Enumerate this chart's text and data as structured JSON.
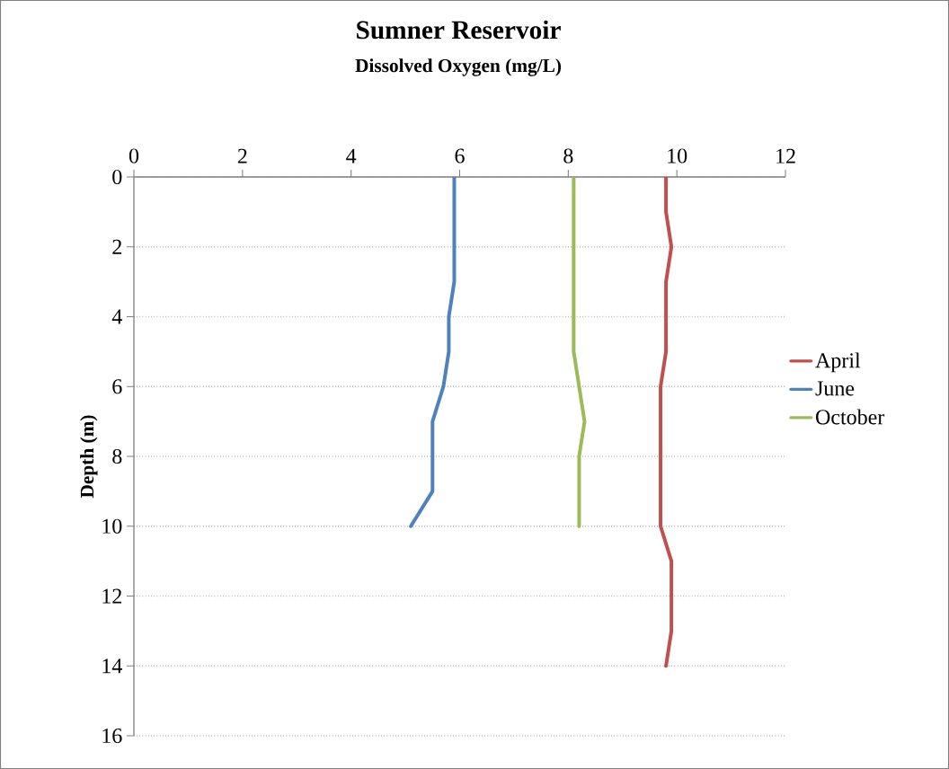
{
  "chart_data": {
    "type": "line",
    "title": "Sumner Reservoir",
    "subtitle": "Dissolved Oxygen (mg/L)",
    "ylabel": "Depth (m)",
    "xlim": [
      0,
      12
    ],
    "xticks": [
      0,
      2,
      4,
      6,
      8,
      10,
      12
    ],
    "ylim": [
      16,
      0
    ],
    "yticks": [
      0,
      2,
      4,
      6,
      8,
      10,
      12,
      14,
      16
    ],
    "grid": "y",
    "legend": "right",
    "marker": "none",
    "line_style": "solid",
    "series": [
      {
        "name": "April",
        "color": "#c0504d",
        "x": [
          9.8,
          9.8,
          9.9,
          9.8,
          9.8,
          9.8,
          9.7,
          9.7,
          9.7,
          9.7,
          9.7,
          9.9,
          9.9,
          9.9,
          9.8
        ],
        "values": [
          0,
          1,
          2,
          3,
          4,
          5,
          6,
          7,
          8,
          9,
          10,
          11,
          12,
          13,
          14
        ]
      },
      {
        "name": "June",
        "color": "#4f81bd",
        "x": [
          5.9,
          5.9,
          5.9,
          5.9,
          5.8,
          5.8,
          5.7,
          5.5,
          5.5,
          5.5,
          5.1
        ],
        "values": [
          0,
          1,
          2,
          3,
          4,
          5,
          6,
          7,
          8,
          9,
          10
        ]
      },
      {
        "name": "October",
        "color": "#9bbb59",
        "x": [
          8.1,
          8.1,
          8.1,
          8.1,
          8.1,
          8.1,
          8.2,
          8.3,
          8.2,
          8.2,
          8.2
        ],
        "values": [
          0,
          1,
          2,
          3,
          4,
          5,
          6,
          7,
          8,
          9,
          10
        ]
      }
    ]
  }
}
